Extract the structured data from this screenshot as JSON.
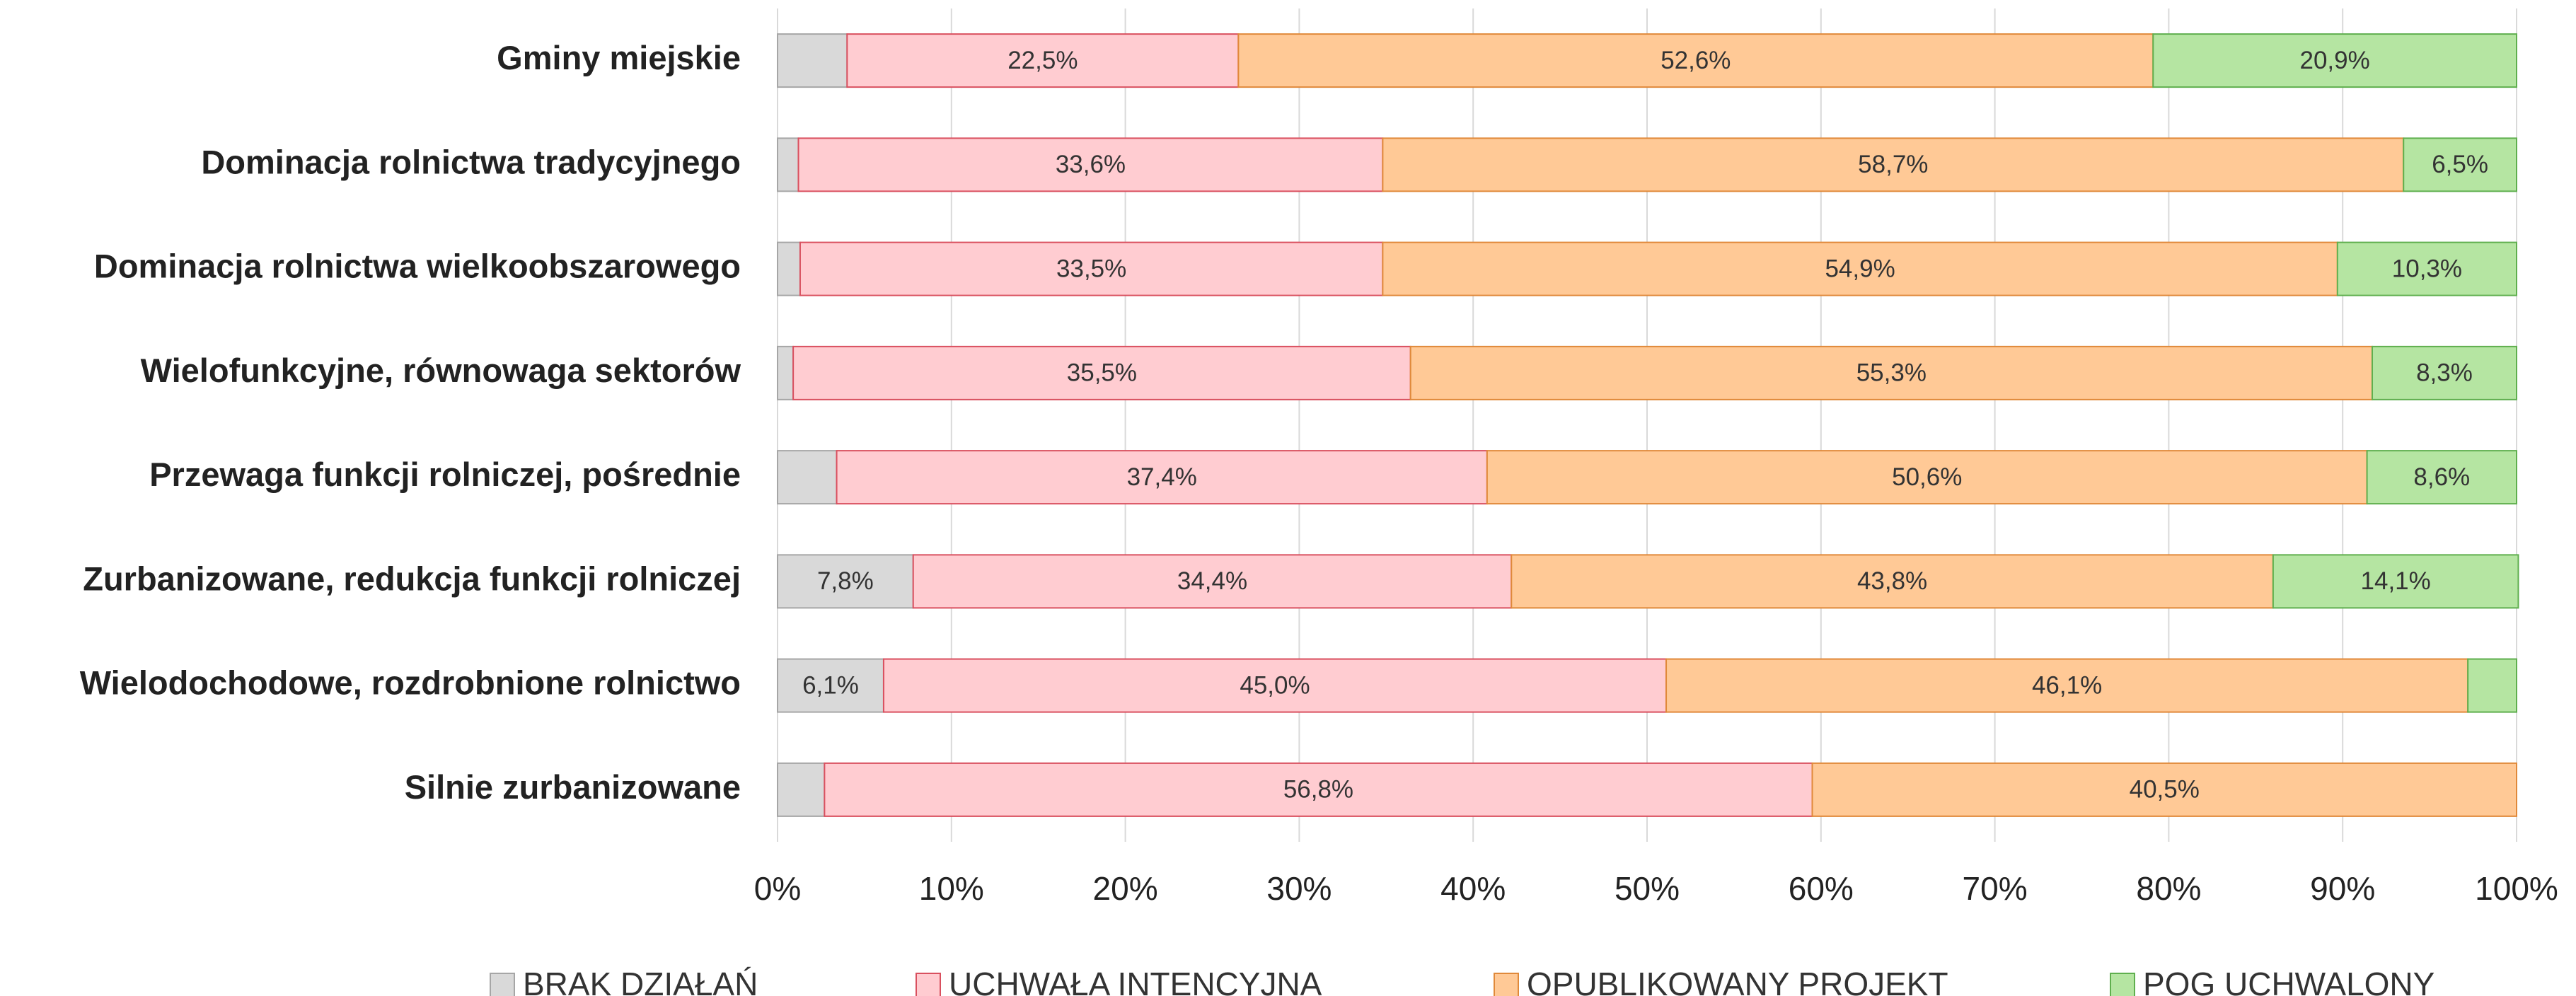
{
  "chart_data": {
    "type": "stacked-bar-horizontal",
    "categories": [
      "Gminy miejskie",
      "Dominacja rolnictwa tradycyjnego",
      "Dominacja rolnictwa wielkoobszarowego",
      "Wielofunkcyjne, równowaga sektorów",
      "Przewaga funkcji rolniczej, pośrednie",
      "Zurbanizowane, redukcja funkcji rolniczej",
      "Wielodochodowe, rozdrobnione rolnictwo",
      "Silnie zurbanizowane"
    ],
    "series": [
      {
        "name": "BRAK DZIAŁAŃ",
        "color": "#d9d9d9",
        "stroke": "#a6a6a6",
        "values": [
          4.0,
          1.2,
          1.3,
          0.9,
          3.4,
          7.8,
          6.1,
          2.7
        ],
        "value_labels": [
          null,
          null,
          null,
          null,
          null,
          "7,8%",
          "6,1%",
          null
        ]
      },
      {
        "name": "UCHWAŁA INTENCYJNA",
        "color": "#ffccd1",
        "stroke": "#d9505f",
        "values": [
          22.5,
          33.6,
          33.5,
          35.5,
          37.4,
          34.4,
          45.0,
          56.8
        ],
        "value_labels": [
          "22,5%",
          "33,6%",
          "33,5%",
          "35,5%",
          "37,4%",
          "34,4%",
          "45,0%",
          "56,8%"
        ]
      },
      {
        "name": "OPUBLIKOWANY PROJEKT",
        "color": "#ffc996",
        "stroke": "#e0893a",
        "values": [
          52.6,
          58.7,
          54.9,
          55.3,
          50.6,
          43.8,
          46.1,
          40.5
        ],
        "value_labels": [
          "52,6%",
          "58,7%",
          "54,9%",
          "55,3%",
          "50,6%",
          "43,8%",
          "46,1%",
          "40,5%"
        ]
      },
      {
        "name": "POG UCHWALONY",
        "color": "#b5e5a2",
        "stroke": "#5faf4e",
        "values": [
          20.9,
          6.5,
          10.3,
          8.3,
          8.6,
          14.1,
          2.8,
          0
        ],
        "value_labels": [
          "20,9%",
          "6,5%",
          "10,3%",
          "8,3%",
          "8,6%",
          "14,1%",
          null,
          null
        ]
      }
    ],
    "xlim": [
      0,
      100
    ],
    "xticks": [
      {
        "value": 0,
        "label": "0%"
      },
      {
        "value": 10,
        "label": "10%"
      },
      {
        "value": 20,
        "label": "20%"
      },
      {
        "value": 30,
        "label": "30%"
      },
      {
        "value": 40,
        "label": "40%"
      },
      {
        "value": 50,
        "label": "50%"
      },
      {
        "value": 60,
        "label": "60%"
      },
      {
        "value": 70,
        "label": "70%"
      },
      {
        "value": 80,
        "label": "80%"
      },
      {
        "value": 90,
        "label": "90%"
      },
      {
        "value": 100,
        "label": "100%"
      }
    ],
    "grid": true,
    "legend": "bottom"
  }
}
